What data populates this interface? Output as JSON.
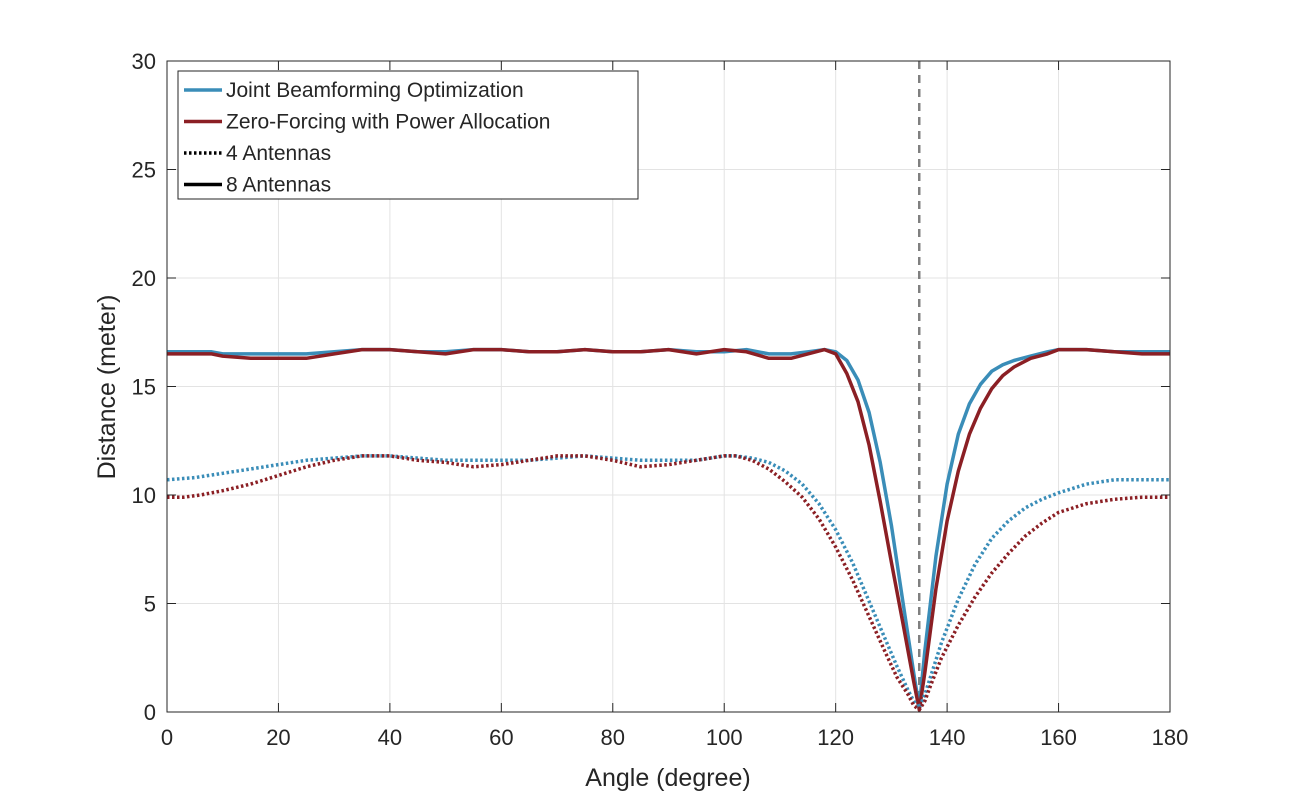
{
  "chart_data": {
    "type": "line",
    "title": "",
    "xlabel": "Angle (degree)",
    "ylabel": "Distance (meter)",
    "xlim": [
      0,
      180
    ],
    "ylim": [
      0,
      30
    ],
    "xticks": [
      0,
      20,
      40,
      60,
      80,
      100,
      120,
      140,
      160,
      180
    ],
    "yticks": [
      0,
      5,
      10,
      15,
      20,
      25,
      30
    ],
    "xtick_labels": [
      "0",
      "20",
      "40",
      "60",
      "80",
      "100",
      "120",
      "140",
      "160",
      "180"
    ],
    "ytick_labels": [
      "0",
      "5",
      "10",
      "15",
      "20",
      "25",
      "30"
    ],
    "grid": true,
    "legend_position": "top-left",
    "reference_line": {
      "x": 135,
      "style": "dashed",
      "color": "#808080"
    },
    "legend": [
      {
        "label": "Joint Beamforming Optimization",
        "color": "#3a8db8",
        "style": "solid"
      },
      {
        "label": "Zero-Forcing with Power Allocation",
        "color": "#8b1f24",
        "style": "solid"
      },
      {
        "label": "4 Antennas",
        "color": "#000000",
        "style": "dotted"
      },
      {
        "label": "8 Antennas",
        "color": "#000000",
        "style": "solid"
      }
    ],
    "series": [
      {
        "name": "Joint Beamforming Optimization, 8 Antennas",
        "color": "#3a8db8",
        "style": "solid",
        "x": [
          0,
          5,
          8,
          10,
          15,
          20,
          25,
          30,
          35,
          40,
          45,
          50,
          55,
          60,
          65,
          70,
          75,
          80,
          85,
          90,
          95,
          100,
          104,
          108,
          112,
          115,
          118,
          120,
          122,
          124,
          126,
          128,
          130,
          132,
          134,
          135,
          136,
          138,
          140,
          142,
          144,
          146,
          148,
          150,
          152,
          155,
          158,
          160,
          165,
          170,
          175,
          180
        ],
        "values": [
          16.6,
          16.6,
          16.6,
          16.5,
          16.5,
          16.5,
          16.5,
          16.6,
          16.7,
          16.7,
          16.6,
          16.6,
          16.7,
          16.7,
          16.6,
          16.6,
          16.7,
          16.6,
          16.6,
          16.7,
          16.6,
          16.6,
          16.7,
          16.5,
          16.5,
          16.6,
          16.7,
          16.6,
          16.2,
          15.3,
          13.8,
          11.5,
          8.6,
          5.2,
          1.8,
          0.2,
          2.8,
          7.2,
          10.5,
          12.8,
          14.2,
          15.1,
          15.7,
          16.0,
          16.2,
          16.4,
          16.6,
          16.7,
          16.7,
          16.6,
          16.6,
          16.6
        ]
      },
      {
        "name": "Zero-Forcing with Power Allocation, 8 Antennas",
        "color": "#8b1f24",
        "style": "solid",
        "x": [
          0,
          5,
          8,
          10,
          15,
          20,
          25,
          30,
          35,
          40,
          45,
          50,
          55,
          60,
          65,
          70,
          75,
          80,
          85,
          90,
          95,
          100,
          104,
          108,
          112,
          115,
          118,
          120,
          122,
          124,
          126,
          128,
          130,
          132,
          134,
          135,
          136,
          138,
          140,
          142,
          144,
          146,
          148,
          150,
          152,
          155,
          158,
          160,
          165,
          170,
          175,
          180
        ],
        "values": [
          16.5,
          16.5,
          16.5,
          16.4,
          16.3,
          16.3,
          16.3,
          16.5,
          16.7,
          16.7,
          16.6,
          16.5,
          16.7,
          16.7,
          16.6,
          16.6,
          16.7,
          16.6,
          16.6,
          16.7,
          16.5,
          16.7,
          16.6,
          16.3,
          16.3,
          16.5,
          16.7,
          16.5,
          15.6,
          14.3,
          12.3,
          9.7,
          6.9,
          4.2,
          1.4,
          0.1,
          1.8,
          5.7,
          8.8,
          11.1,
          12.8,
          14.0,
          14.9,
          15.5,
          15.9,
          16.3,
          16.5,
          16.7,
          16.7,
          16.6,
          16.5,
          16.5
        ]
      },
      {
        "name": "Joint Beamforming Optimization, 4 Antennas",
        "color": "#3a8db8",
        "style": "dotted",
        "x": [
          0,
          5,
          10,
          15,
          20,
          25,
          30,
          35,
          40,
          45,
          50,
          55,
          60,
          65,
          70,
          75,
          80,
          85,
          90,
          95,
          100,
          102,
          105,
          108,
          111,
          114,
          117,
          120,
          123,
          126,
          129,
          131,
          133,
          134,
          135,
          136,
          137,
          139,
          142,
          145,
          148,
          151,
          154,
          157,
          160,
          165,
          170,
          175,
          180
        ],
        "values": [
          10.7,
          10.8,
          11.0,
          11.2,
          11.4,
          11.6,
          11.7,
          11.8,
          11.8,
          11.7,
          11.6,
          11.6,
          11.6,
          11.6,
          11.7,
          11.8,
          11.7,
          11.6,
          11.6,
          11.6,
          11.8,
          11.8,
          11.7,
          11.5,
          11.1,
          10.5,
          9.6,
          8.4,
          6.9,
          5.1,
          3.3,
          2.1,
          1.0,
          0.5,
          0.2,
          0.8,
          1.6,
          3.2,
          5.2,
          6.8,
          8.0,
          8.8,
          9.4,
          9.8,
          10.1,
          10.5,
          10.7,
          10.7,
          10.7
        ]
      },
      {
        "name": "Zero-Forcing with Power Allocation, 4 Antennas",
        "color": "#8b1f24",
        "style": "dotted",
        "x": [
          0,
          3,
          6,
          10,
          15,
          20,
          25,
          30,
          35,
          40,
          45,
          50,
          55,
          60,
          65,
          70,
          75,
          80,
          85,
          90,
          95,
          100,
          102,
          105,
          108,
          111,
          114,
          117,
          120,
          123,
          126,
          129,
          131,
          133,
          134,
          135,
          136,
          137,
          139,
          142,
          145,
          148,
          151,
          154,
          157,
          160,
          165,
          170,
          175,
          180
        ],
        "values": [
          9.9,
          9.9,
          10.0,
          10.2,
          10.5,
          10.9,
          11.3,
          11.6,
          11.8,
          11.8,
          11.6,
          11.5,
          11.3,
          11.4,
          11.6,
          11.8,
          11.8,
          11.6,
          11.3,
          11.4,
          11.6,
          11.8,
          11.8,
          11.6,
          11.2,
          10.6,
          9.9,
          8.9,
          7.6,
          6.1,
          4.4,
          2.7,
          1.6,
          0.8,
          0.3,
          0.1,
          0.5,
          1.2,
          2.5,
          4.0,
          5.3,
          6.4,
          7.3,
          8.1,
          8.7,
          9.2,
          9.6,
          9.8,
          9.9,
          9.9
        ]
      }
    ]
  }
}
